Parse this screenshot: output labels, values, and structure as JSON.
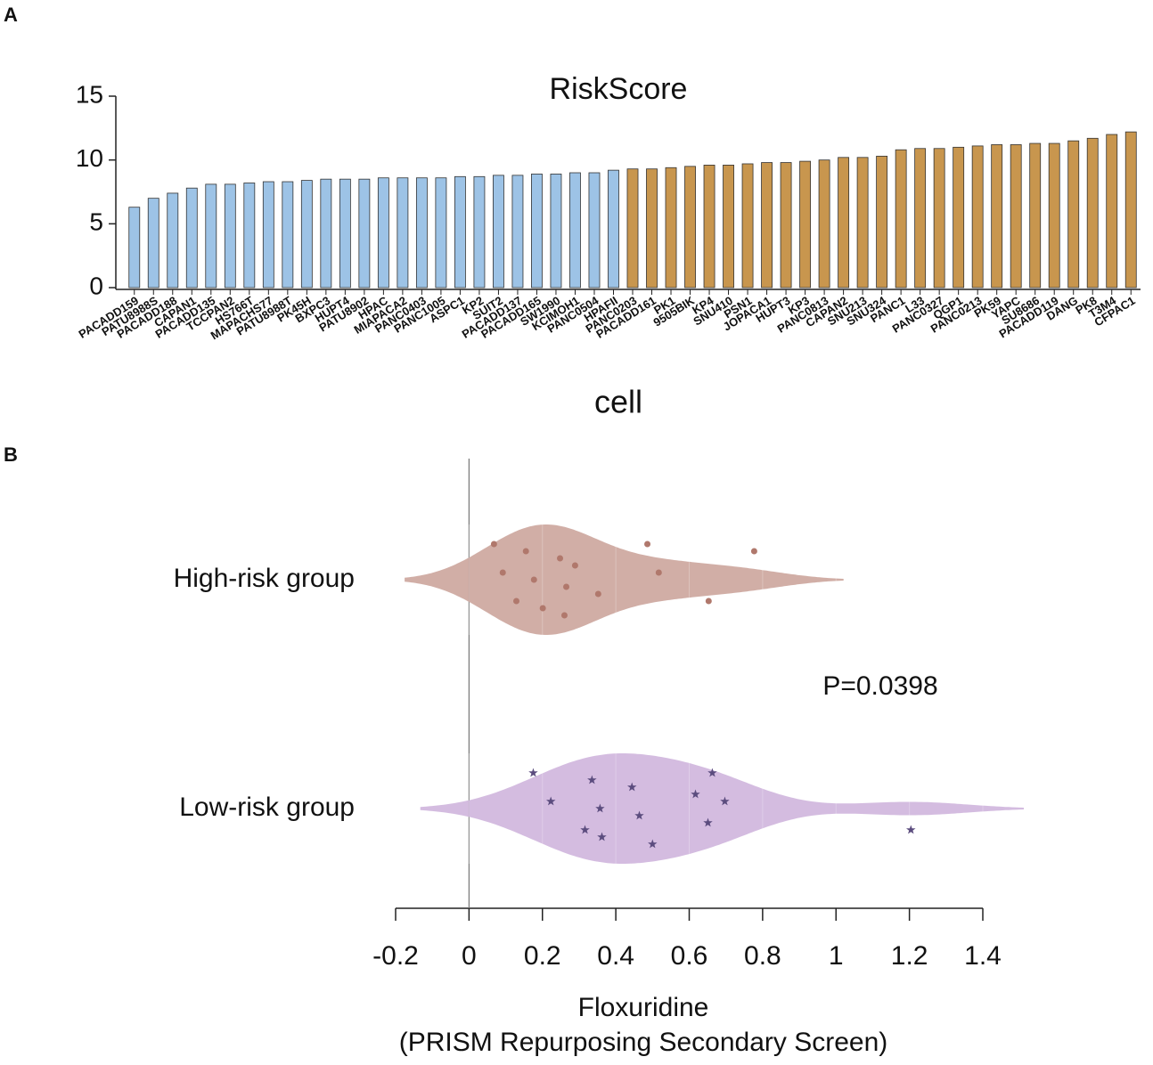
{
  "chart_data": [
    {
      "type": "bar",
      "panel": "A",
      "title": "RiskScore",
      "xlabel": "cell",
      "categories": [
        "PACADD159",
        "PATU8988S",
        "PACADD188",
        "CAPAN1",
        "PACADD135",
        "TCCPAN2",
        "HS766T",
        "MAPACHS77",
        "PATU8988T",
        "PK45H",
        "BXPC3",
        "HUPT4",
        "PATU8902",
        "HPAC",
        "MIAPACA2",
        "PANC0403",
        "PANC1005",
        "ASPC1",
        "KP2",
        "SUIT2",
        "PACADD137",
        "PACADD165",
        "SW1990",
        "KCIMOH1",
        "PANC0504",
        "HPAFII",
        "PANC0203",
        "PACADD161",
        "PK1",
        "9505BIK",
        "KP4",
        "SNU410",
        "PSN1",
        "JOPACA1",
        "HUPT3",
        "KP3",
        "PANC0813",
        "CAPAN2",
        "SNU213",
        "SNU324",
        "PANC1",
        "L33",
        "PANC0327",
        "QGP1",
        "PANC0213",
        "PK59",
        "YAPC",
        "SU8686",
        "PACADD119",
        "DANG",
        "PK8",
        "T3M4",
        "CFPAC1"
      ],
      "values": [
        6.3,
        7.0,
        7.4,
        7.8,
        8.1,
        8.1,
        8.2,
        8.3,
        8.3,
        8.4,
        8.5,
        8.5,
        8.5,
        8.6,
        8.6,
        8.6,
        8.6,
        8.7,
        8.7,
        8.8,
        8.8,
        8.9,
        8.9,
        9.0,
        9.0,
        9.2,
        9.3,
        9.3,
        9.4,
        9.5,
        9.6,
        9.6,
        9.7,
        9.8,
        9.8,
        9.9,
        10.0,
        10.2,
        10.2,
        10.3,
        10.8,
        10.9,
        10.9,
        11.0,
        11.1,
        11.2,
        11.2,
        11.3,
        11.3,
        11.5,
        11.7,
        12.0,
        12.2
      ],
      "colors": [
        "#9dc3e6",
        "#9dc3e6",
        "#9dc3e6",
        "#9dc3e6",
        "#9dc3e6",
        "#9dc3e6",
        "#9dc3e6",
        "#9dc3e6",
        "#9dc3e6",
        "#9dc3e6",
        "#9dc3e6",
        "#9dc3e6",
        "#9dc3e6",
        "#9dc3e6",
        "#9dc3e6",
        "#9dc3e6",
        "#9dc3e6",
        "#9dc3e6",
        "#9dc3e6",
        "#9dc3e6",
        "#9dc3e6",
        "#9dc3e6",
        "#9dc3e6",
        "#9dc3e6",
        "#9dc3e6",
        "#9dc3e6",
        "#c8964e",
        "#c8964e",
        "#c8964e",
        "#c8964e",
        "#c8964e",
        "#c8964e",
        "#c8964e",
        "#c8964e",
        "#c8964e",
        "#c8964e",
        "#c8964e",
        "#c8964e",
        "#c8964e",
        "#c8964e",
        "#c8964e",
        "#c8964e",
        "#c8964e",
        "#c8964e",
        "#c8964e",
        "#c8964e",
        "#c8964e",
        "#c8964e",
        "#c8964e",
        "#c8964e",
        "#c8964e",
        "#c8964e",
        "#c8964e"
      ],
      "ylim": [
        0,
        15
      ],
      "yticks": [
        0,
        5,
        10,
        15
      ]
    },
    {
      "type": "violin",
      "panel": "B",
      "xlabel": [
        "Floxuridine",
        "(PRISM Repurposing Secondary Screen)"
      ],
      "annotation": "P=0.0398",
      "series": [
        {
          "name": "High-risk group",
          "color": "#c9a097",
          "point_color": "#b0786c",
          "marker": "circle",
          "values": [
            0.068,
            0.092,
            0.129,
            0.155,
            0.177,
            0.201,
            0.248,
            0.265,
            0.26,
            0.289,
            0.352,
            0.486,
            0.517,
            0.653,
            0.777
          ]
        },
        {
          "name": "Low-risk group",
          "color": "#cdb0da",
          "point_color": "#5b4c7e",
          "marker": "star",
          "values": [
            0.175,
            0.223,
            0.316,
            0.335,
            0.357,
            0.362,
            0.444,
            0.464,
            0.5,
            0.617,
            0.651,
            0.663,
            0.697,
            1.204
          ]
        }
      ],
      "xlim": [
        -0.2,
        1.4
      ],
      "xticks": [
        -0.2,
        0,
        0.2,
        0.4,
        0.6,
        0.8,
        1,
        1.2,
        1.4
      ]
    }
  ]
}
